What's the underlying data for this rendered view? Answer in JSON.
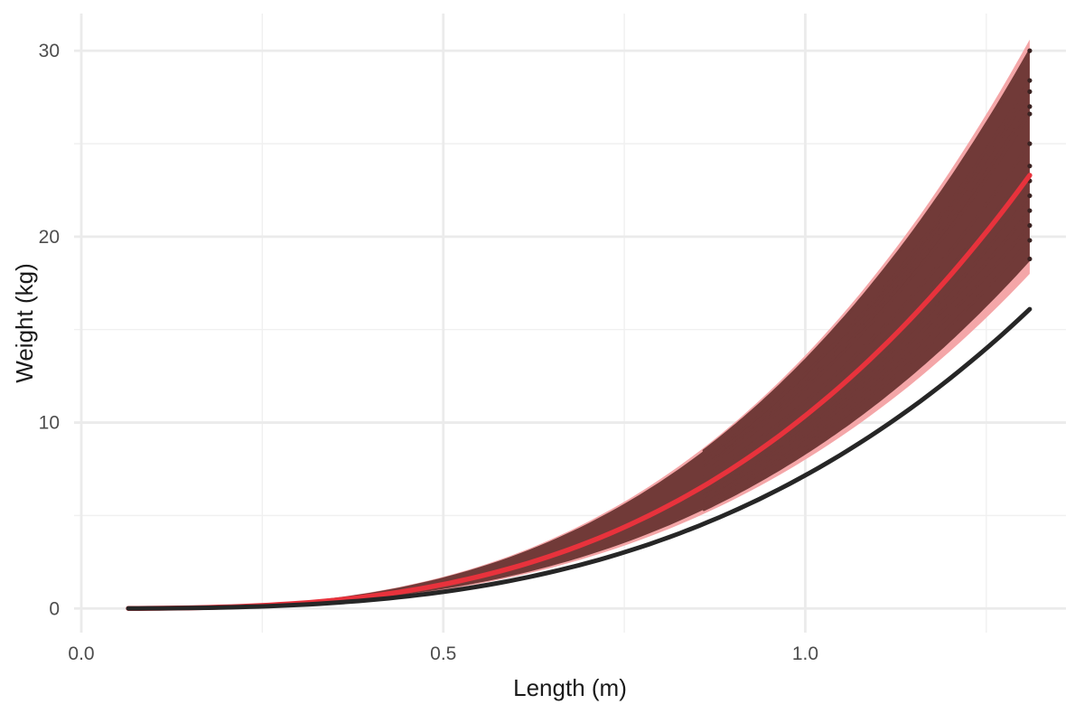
{
  "chart_data": {
    "type": "line",
    "title": "",
    "xlabel": "Length (m)",
    "ylabel": "Weight (kg)",
    "xlim": [
      -0.01,
      1.36
    ],
    "ylim": [
      -1.3,
      32
    ],
    "x_ticks": [
      0.0,
      0.5,
      1.0
    ],
    "x_tick_labels": [
      "0.0",
      "0.5",
      "1.0"
    ],
    "y_ticks": [
      0,
      10,
      20,
      30
    ],
    "y_tick_labels": [
      "0",
      "10",
      "20",
      "30"
    ],
    "grid": true,
    "legend": "none",
    "x_start": 0.065,
    "x_end": 1.31,
    "draws_x_start": 0.86,
    "band": {
      "name": "",
      "lower_at_x_end": 18.0,
      "upper_at_x_end": 30.6,
      "color": "#f4a6a8"
    },
    "series": [
      {
        "name": "",
        "role": "draws",
        "color": "#713a38",
        "end_values": [
          30.0,
          28.4,
          27.8,
          27.0,
          26.6,
          25.0,
          23.8,
          23.0,
          22.2,
          21.4,
          20.6,
          19.8,
          18.8
        ]
      },
      {
        "name": "",
        "role": "mean",
        "color": "#e8323c",
        "end_value": 23.3
      },
      {
        "name": "",
        "role": "reference",
        "color": "#262626",
        "end_value": 16.1
      }
    ],
    "curve_model": "weight = W_end * (length / 1.31)^3"
  }
}
